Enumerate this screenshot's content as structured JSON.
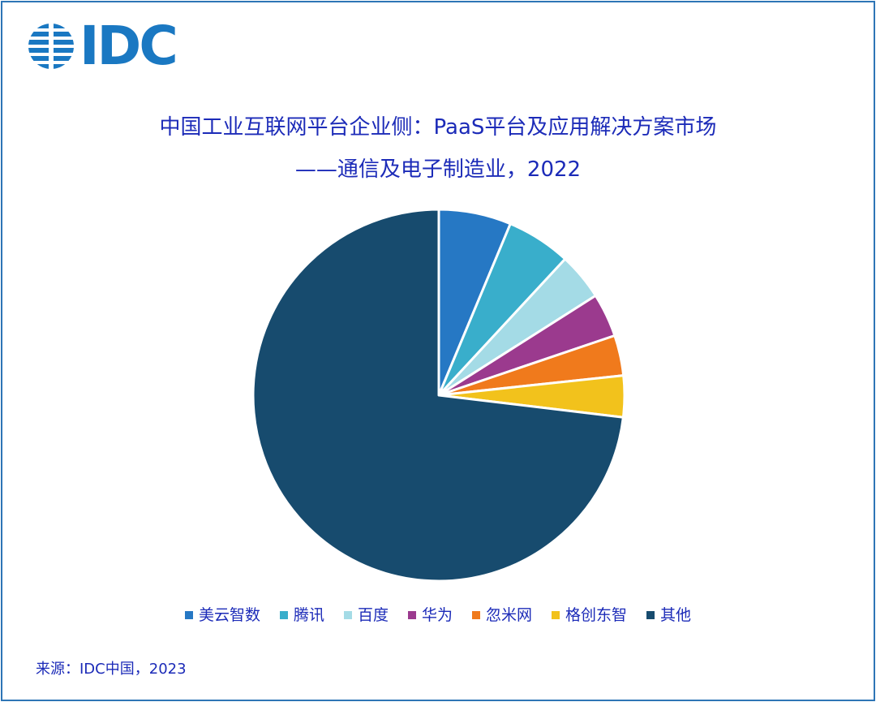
{
  "logo": {
    "text": "IDC",
    "color": "#1a78c2"
  },
  "chart_data": {
    "type": "pie",
    "title": "中国工业互联网平台企业侧：PaaS平台及应用解决方案市场",
    "subtitle": "——通信及电子制造业，2022",
    "legend_position": "bottom",
    "categories": [
      "美云智数",
      "腾讯",
      "百度",
      "华为",
      "忽米网",
      "格创东智",
      "其他"
    ],
    "values": [
      6.3,
      5.6,
      4.1,
      3.8,
      3.5,
      3.6,
      73.1
    ],
    "colors": [
      "#2678c4",
      "#39aecb",
      "#a4dbe6",
      "#9b3a8e",
      "#f07a1c",
      "#f2c21c",
      "#174b6e"
    ],
    "unit": "%"
  },
  "source": "来源：IDC中国，2023"
}
